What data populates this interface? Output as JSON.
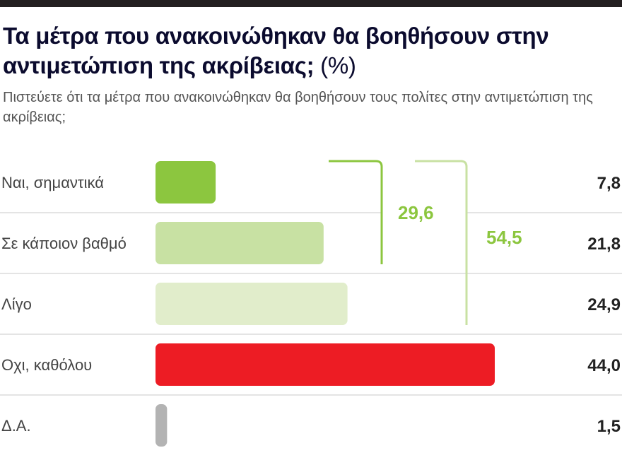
{
  "chart_data": {
    "type": "bar",
    "orientation": "horizontal",
    "title": "Τα μέτρα που ανακοινώθηκαν θα βοηθήσουν στην αντιμετώπιση της ακρίβειας;",
    "title_unit": "(%)",
    "subtitle": "Πιστεύετε ότι τα μέτρα που ανακοινώθηκαν θα βοηθήσουν τους πολίτες στην αντιμετώπιση της ακρίβειας;",
    "categories": [
      "Ναι, σημαντικά",
      "Σε κάποιον βαθμό",
      "Λίγο",
      "Οχι, καθόλου",
      "Δ.Α."
    ],
    "values": [
      7.8,
      21.8,
      24.9,
      44.0,
      1.5
    ],
    "value_labels": [
      "7,8",
      "21,8",
      "24,9",
      "44,0",
      "1,5"
    ],
    "colors": [
      "#8cc63f",
      "#c8e1a3",
      "#e1edcb",
      "#ed1c24",
      "#b3b3b3"
    ],
    "brackets": [
      {
        "label": "29,6",
        "rows": [
          0,
          1
        ],
        "color": "#8cc63f"
      },
      {
        "label": "54,5",
        "rows": [
          0,
          2
        ],
        "color": "#c8e1a3"
      }
    ],
    "xlim": [
      0,
      44.0
    ]
  }
}
